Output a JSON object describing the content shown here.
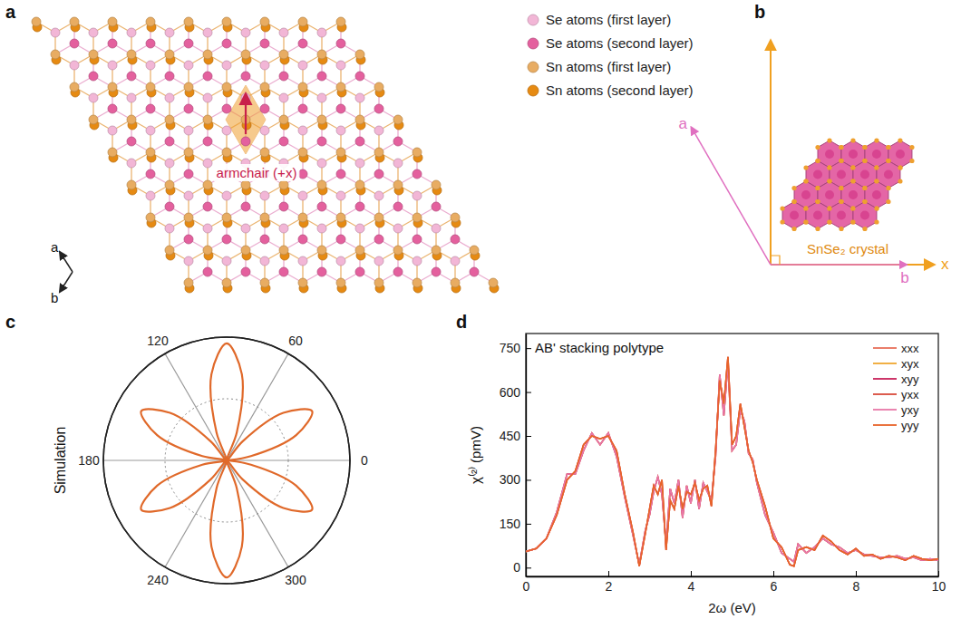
{
  "panel_labels": [
    "a",
    "b",
    "c",
    "d"
  ],
  "diagrams": {
    "a": {
      "legend": [
        {
          "label": "Se atoms (first layer)",
          "color": "#f2b6d6"
        },
        {
          "label": "Se atoms (second layer)",
          "color": "#e4609e"
        },
        {
          "label": "Sn atoms (first layer)",
          "color": "#e8ac62"
        },
        {
          "label": "Sn atoms (second layer)",
          "color": "#e68a12"
        }
      ],
      "annotation": "armchair (+x)",
      "axes": [
        "a",
        "b"
      ]
    },
    "b": {
      "axes": [
        "a",
        "b",
        "x"
      ],
      "label": "SnSe₂ crystal"
    }
  },
  "chart_data": [
    {
      "type": "polar",
      "ylabel": "Simulation",
      "color": "#e0692a",
      "grid": true,
      "tick_labels": "x",
      "x": [
        0,
        10,
        20,
        30,
        40,
        50,
        60,
        70,
        80,
        90,
        100,
        110,
        120,
        130,
        140,
        150,
        160,
        170,
        180,
        190,
        200,
        210,
        220,
        230,
        240,
        250,
        260,
        270,
        280,
        290,
        300,
        310,
        320,
        330,
        340,
        350,
        360
      ],
      "values": [
        0,
        0.2,
        0.6,
        0.8,
        0.6,
        0.2,
        0,
        0.24,
        0.71,
        0.95,
        0.71,
        0.24,
        0,
        0.2,
        0.6,
        0.8,
        0.6,
        0.2,
        0,
        0.2,
        0.6,
        0.8,
        0.6,
        0.2,
        0,
        0.24,
        0.71,
        0.95,
        0.71,
        0.24,
        0,
        0.2,
        0.6,
        0.8,
        0.6,
        0.2,
        0
      ],
      "xlim": [
        0,
        360
      ],
      "xticks": [
        0,
        60,
        120,
        180,
        240,
        300
      ],
      "ylim": [
        0,
        1
      ],
      "yticks": [
        0.5,
        1
      ]
    },
    {
      "type": "line",
      "title": "AB' stacking polytype",
      "xlabel": "2ω (eV)",
      "ylabel": "χ⁽²⁾ (pmV)",
      "legend": "upper right",
      "x": [
        0,
        0.25,
        0.5,
        0.75,
        1,
        1.2,
        1.4,
        1.6,
        1.8,
        2,
        2.2,
        2.4,
        2.6,
        2.75,
        2.9,
        3,
        3.1,
        3.2,
        3.3,
        3.4,
        3.5,
        3.6,
        3.7,
        3.8,
        3.9,
        4,
        4.1,
        4.2,
        4.3,
        4.4,
        4.5,
        4.6,
        4.7,
        4.8,
        4.9,
        5,
        5.1,
        5.2,
        5.3,
        5.4,
        5.5,
        5.6,
        5.8,
        6,
        6.2,
        6.4,
        6.5,
        6.6,
        6.8,
        7,
        7.2,
        7.4,
        7.6,
        7.8,
        8,
        8.2,
        8.4,
        8.6,
        8.8,
        9,
        9.2,
        9.4,
        9.6,
        9.8,
        10
      ],
      "series": [
        {
          "name": "xxx",
          "color": "#e8705a",
          "values": [
            55,
            65,
            100,
            180,
            300,
            330,
            420,
            450,
            440,
            450,
            400,
            250,
            120,
            5,
            120,
            200,
            280,
            250,
            300,
            60,
            230,
            200,
            280,
            200,
            260,
            250,
            290,
            230,
            270,
            280,
            210,
            400,
            640,
            560,
            720,
            420,
            450,
            560,
            480,
            400,
            360,
            300,
            210,
            100,
            70,
            10,
            5,
            60,
            70,
            60,
            110,
            90,
            60,
            45,
            65,
            40,
            45,
            30,
            40,
            35,
            25,
            40,
            30,
            25,
            30
          ]
        },
        {
          "name": "xyx",
          "color": "#f0a830",
          "values": [
            55,
            65,
            100,
            190,
            320,
            320,
            400,
            460,
            420,
            460,
            380,
            240,
            110,
            10,
            130,
            180,
            260,
            310,
            250,
            80,
            270,
            220,
            300,
            170,
            280,
            220,
            300,
            200,
            290,
            260,
            230,
            380,
            660,
            520,
            700,
            400,
            420,
            540,
            500,
            390,
            370,
            290,
            180,
            120,
            50,
            30,
            20,
            80,
            50,
            70,
            100,
            80,
            70,
            50,
            60,
            45,
            40,
            35,
            35,
            40,
            30,
            35,
            25,
            30,
            25
          ]
        },
        {
          "name": "xyy",
          "color": "#c8205a",
          "values": [
            55,
            65,
            100,
            190,
            320,
            320,
            400,
            460,
            420,
            460,
            380,
            240,
            110,
            10,
            130,
            180,
            260,
            310,
            250,
            80,
            270,
            220,
            300,
            170,
            280,
            220,
            300,
            200,
            290,
            260,
            230,
            380,
            660,
            520,
            700,
            400,
            420,
            540,
            500,
            390,
            370,
            290,
            180,
            120,
            50,
            30,
            20,
            80,
            50,
            70,
            100,
            80,
            70,
            50,
            60,
            45,
            40,
            35,
            35,
            40,
            30,
            35,
            25,
            30,
            25
          ]
        },
        {
          "name": "yxx",
          "color": "#d84a3a",
          "values": [
            55,
            65,
            100,
            180,
            300,
            330,
            420,
            450,
            440,
            450,
            400,
            250,
            120,
            5,
            120,
            200,
            280,
            250,
            300,
            60,
            230,
            200,
            280,
            200,
            260,
            250,
            290,
            230,
            270,
            280,
            210,
            400,
            640,
            560,
            720,
            420,
            450,
            560,
            480,
            400,
            360,
            300,
            210,
            100,
            70,
            10,
            5,
            60,
            70,
            60,
            110,
            90,
            60,
            45,
            65,
            40,
            45,
            30,
            40,
            35,
            25,
            40,
            30,
            25,
            30
          ]
        },
        {
          "name": "yxy",
          "color": "#e878a8",
          "values": [
            55,
            65,
            100,
            190,
            320,
            320,
            400,
            460,
            420,
            460,
            380,
            240,
            110,
            10,
            130,
            180,
            260,
            310,
            250,
            80,
            270,
            220,
            300,
            170,
            280,
            220,
            300,
            200,
            290,
            260,
            230,
            380,
            660,
            520,
            700,
            400,
            420,
            540,
            500,
            390,
            370,
            290,
            180,
            120,
            50,
            30,
            20,
            80,
            50,
            70,
            100,
            80,
            70,
            50,
            60,
            45,
            40,
            35,
            35,
            40,
            30,
            35,
            25,
            30,
            25
          ]
        },
        {
          "name": "yyy",
          "color": "#e8642a",
          "values": [
            55,
            65,
            100,
            180,
            300,
            330,
            420,
            450,
            440,
            450,
            400,
            250,
            120,
            5,
            120,
            200,
            280,
            250,
            300,
            60,
            230,
            200,
            280,
            200,
            260,
            250,
            290,
            230,
            270,
            280,
            210,
            400,
            640,
            560,
            720,
            420,
            450,
            560,
            480,
            400,
            360,
            300,
            210,
            100,
            70,
            10,
            5,
            60,
            70,
            60,
            110,
            90,
            60,
            45,
            65,
            40,
            45,
            30,
            40,
            35,
            25,
            40,
            30,
            25,
            30
          ]
        }
      ],
      "xlim": [
        0,
        10
      ],
      "xticks": [
        0,
        2,
        4,
        6,
        8,
        10
      ],
      "ylim": [
        -30,
        800
      ],
      "yticks": [
        0,
        150,
        300,
        450,
        600,
        750
      ]
    }
  ]
}
